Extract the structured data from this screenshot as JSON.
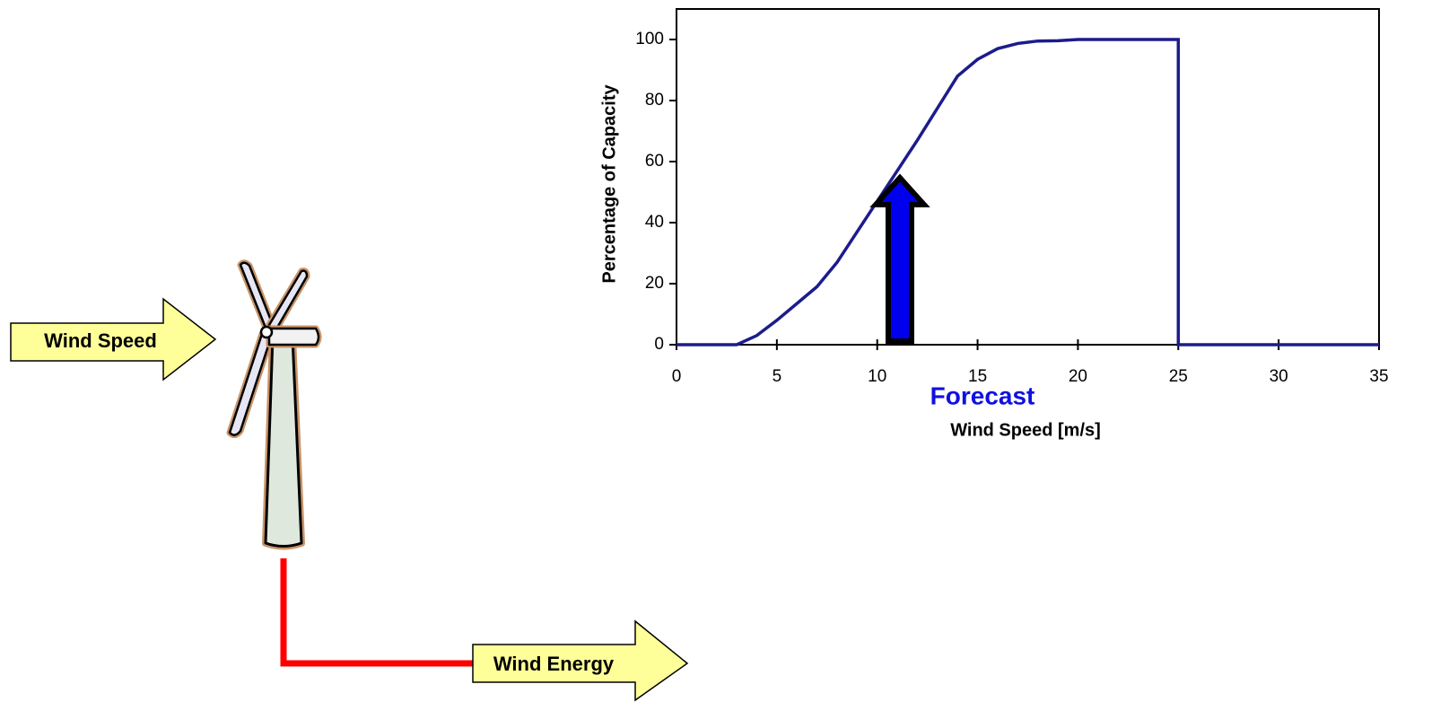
{
  "chart_data": {
    "type": "line",
    "x": [
      0,
      3,
      4,
      5,
      6,
      7,
      8,
      9,
      10,
      11,
      12,
      13,
      14,
      15,
      16,
      17,
      18,
      19,
      20,
      25,
      25,
      35
    ],
    "values": [
      0,
      0,
      3,
      8,
      13.5,
      19,
      27,
      37,
      47,
      57,
      67,
      77.5,
      88,
      93.5,
      97,
      98.7,
      99.5,
      99.6,
      100,
      100,
      0,
      0
    ],
    "color": "#1c1c8c",
    "xlim": [
      0,
      35
    ],
    "xticks": [
      0,
      5,
      10,
      15,
      20,
      25,
      30,
      35
    ],
    "ylim": [
      0,
      110
    ],
    "yticks": [
      0,
      20,
      40,
      60,
      80,
      100
    ],
    "xlabel": "Wind Speed [m/s]",
    "ylabel": "Percentage of Capacity",
    "annotation": "Forecast"
  },
  "diagram": {
    "input": "Wind Speed",
    "output": "Wind Energy"
  }
}
